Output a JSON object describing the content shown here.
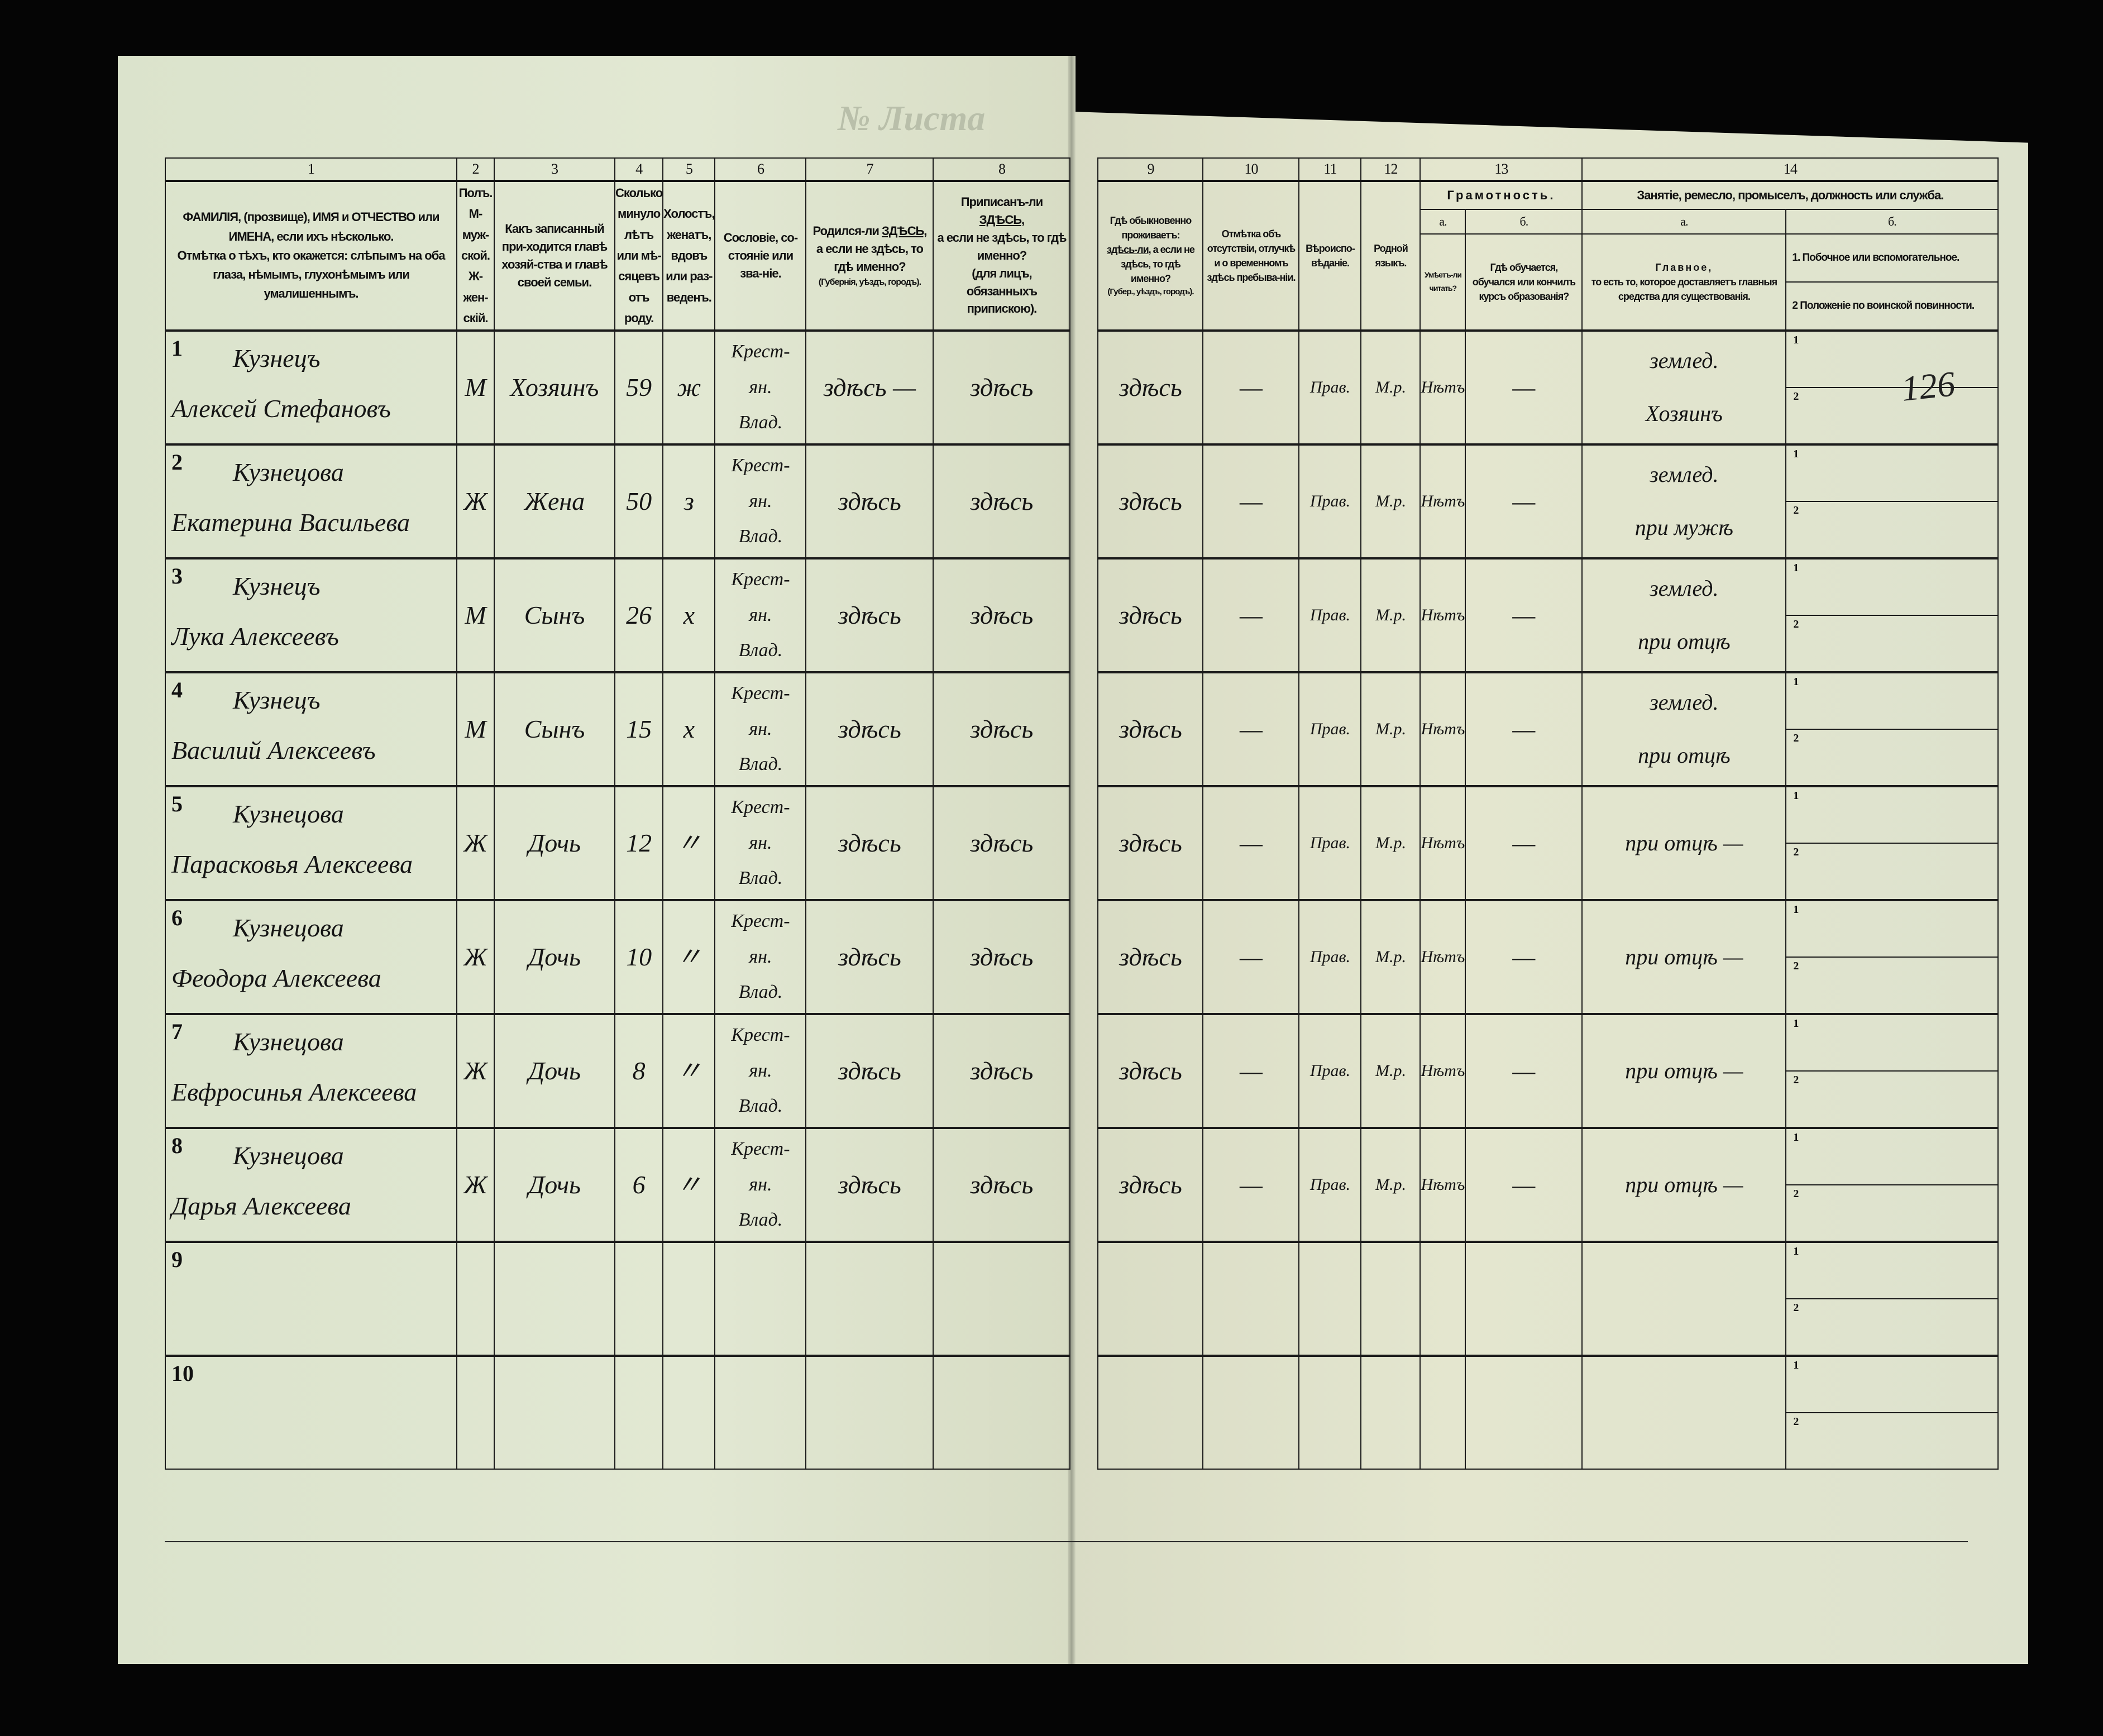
{
  "sheet_header": {
    "sheet_label": "№ Листа"
  },
  "page_number_handwritten": "126",
  "columns": {
    "c1": {
      "num": "1",
      "title_line1": "ФАМИЛІЯ, (прозвище), ИМЯ и ОТЧЕСТВО или",
      "title_line2": "ИМЕНА, если ихъ нѣсколько.",
      "title_line3": "Отмѣтка о тѣхъ, кто окажется: слѣпымъ на оба глаза, нѣмымъ, глухонѣмымъ или умалишеннымъ."
    },
    "c2": {
      "num": "2",
      "title": "Полъ. М-муж-ской. Ж-жен-скій."
    },
    "c3": {
      "num": "3",
      "title": "Какъ записанный при-ходится главѣ хозяй-ства и главѣ своей семьи."
    },
    "c4": {
      "num": "4",
      "title": "Сколько минуло лѣтъ или мѣ-сяцевъ отъ роду."
    },
    "c5": {
      "num": "5",
      "title": "Холостъ, женатъ, вдовъ или раз-веденъ."
    },
    "c6": {
      "num": "6",
      "title": "Сословіе, со-стояніе или зва-ніе."
    },
    "c7": {
      "num": "7",
      "title_a": "Родился-ли",
      "title_here": "ЗДѢСЬ,",
      "title_b": "а если не здѣсь, то гдѣ именно?",
      "title_c": "(Губернія, уѣздъ, городъ)."
    },
    "c8": {
      "num": "8",
      "title_a": "Приписанъ-ли",
      "title_here": "ЗДѢСЬ,",
      "title_b": "а если не здѣсь, то гдѣ именно?",
      "title_c": "(для лицъ, обязанныхъ припискою)."
    },
    "c9": {
      "num": "9",
      "title_a": "Гдѣ обыкновенно проживаетъ:",
      "title_here": "здѣсь-ли,",
      "title_b": "а если не здѣсь, то гдѣ именно?",
      "title_c": "(Губер., уѣздъ, городъ)."
    },
    "c10": {
      "num": "10",
      "title": "Отмѣтка объ отсутствіи, отлучкѣ и о временномъ здѣсь пребыва-ніи."
    },
    "c11": {
      "num": "11",
      "title": "Вѣроиспо-вѣданіе."
    },
    "c12": {
      "num": "12",
      "title": "Родной языкъ."
    },
    "c13": {
      "num": "13",
      "group": "Грамотность.",
      "a_label": "а.",
      "a_title": "Умѣетъ-ли читать?",
      "b_label": "б.",
      "b_title": "Гдѣ обучается, обучался или кончилъ курсъ образованія?"
    },
    "c14": {
      "num": "14",
      "group": "Занятіе, ремесло, промыселъ, должность или служба.",
      "a_label": "а.",
      "a_title_1": "Главное,",
      "a_title_2": "то есть то, которое доставляетъ главныя средства для существованія.",
      "b_label": "б.",
      "b_opt1": "1. Побочное или вспомогательное.",
      "b_opt2": "2 Положеніе по воинской повинности."
    }
  },
  "rows": [
    {
      "n": "1",
      "surname": "Кузнецъ",
      "given": "Алексей Стефановъ",
      "sex": "М",
      "relation": "Хозяинъ",
      "age": "59",
      "marital": "ж",
      "estate": [
        "Крест-",
        "ян.",
        "Влад."
      ],
      "born": "здѣсь —",
      "registered": "здѣсь",
      "resides": "здѣсь",
      "absence": "—",
      "religion": "Прав.",
      "language": "М.р.",
      "literate": "Нѣтъ",
      "education": "—",
      "occupation": [
        "землед.",
        "Хозяинъ"
      ]
    },
    {
      "n": "2",
      "surname": "Кузнецова",
      "given": "Екатерина Васильева",
      "sex": "Ж",
      "relation": "Жена",
      "age": "50",
      "marital": "з",
      "estate": [
        "Крест-",
        "ян.",
        "Влад."
      ],
      "born": "здѣсь",
      "registered": "здѣсь",
      "resides": "здѣсь",
      "absence": "—",
      "religion": "Прав.",
      "language": "М.р.",
      "literate": "Нѣтъ",
      "education": "—",
      "occupation": [
        "землед.",
        "при мужѣ"
      ]
    },
    {
      "n": "3",
      "surname": "Кузнецъ",
      "given": "Лука Алексеевъ",
      "sex": "М",
      "relation": "Сынъ",
      "age": "26",
      "marital": "х",
      "estate": [
        "Крест-",
        "ян.",
        "Влад."
      ],
      "born": "здѣсь",
      "registered": "здѣсь",
      "resides": "здѣсь",
      "absence": "—",
      "religion": "Прав.",
      "language": "М.р.",
      "literate": "Нѣтъ",
      "education": "—",
      "occupation": [
        "землед.",
        "при отцѣ"
      ]
    },
    {
      "n": "4",
      "surname": "Кузнецъ",
      "given": "Василий Алексеевъ",
      "sex": "М",
      "relation": "Сынъ",
      "age": "15",
      "marital": "х",
      "estate": [
        "Крест-",
        "ян.",
        "Влад."
      ],
      "born": "здѣсь",
      "registered": "здѣсь",
      "resides": "здѣсь",
      "absence": "—",
      "religion": "Прав.",
      "language": "М.р.",
      "literate": "Нѣтъ",
      "education": "—",
      "occupation": [
        "землед.",
        "при отцѣ"
      ]
    },
    {
      "n": "5",
      "surname": "Кузнецова",
      "given": "Парасковья Алексеева",
      "sex": "Ж",
      "relation": "Дочь",
      "age": "12",
      "marital": "〃",
      "estate": [
        "Крест-",
        "ян.",
        "Влад."
      ],
      "born": "здѣсь",
      "registered": "здѣсь",
      "resides": "здѣсь",
      "absence": "—",
      "religion": "Прав.",
      "language": "М.р.",
      "literate": "Нѣтъ",
      "education": "—",
      "occupation": [
        "при отцѣ —"
      ]
    },
    {
      "n": "6",
      "surname": "Кузнецова",
      "given": "Феодора Алексеева",
      "sex": "Ж",
      "relation": "Дочь",
      "age": "10",
      "marital": "〃",
      "estate": [
        "Крест-",
        "ян.",
        "Влад."
      ],
      "born": "здѣсь",
      "registered": "здѣсь",
      "resides": "здѣсь",
      "absence": "—",
      "religion": "Прав.",
      "language": "М.р.",
      "literate": "Нѣтъ",
      "education": "—",
      "occupation": [
        "при отцѣ —"
      ]
    },
    {
      "n": "7",
      "surname": "Кузнецова",
      "given": "Евфросинья Алексеева",
      "sex": "Ж",
      "relation": "Дочь",
      "age": "8",
      "marital": "〃",
      "estate": [
        "Крест-",
        "ян.",
        "Влад."
      ],
      "born": "здѣсь",
      "registered": "здѣсь",
      "resides": "здѣсь",
      "absence": "—",
      "religion": "Прав.",
      "language": "М.р.",
      "literate": "Нѣтъ",
      "education": "—",
      "occupation": [
        "при отцѣ —"
      ]
    },
    {
      "n": "8",
      "surname": "Кузнецова",
      "given": "Дарья Алексеева",
      "sex": "Ж",
      "relation": "Дочь",
      "age": "6",
      "marital": "〃",
      "estate": [
        "Крест-",
        "ян.",
        "Влад."
      ],
      "born": "здѣсь",
      "registered": "здѣсь",
      "resides": "здѣсь",
      "absence": "—",
      "religion": "Прав.",
      "language": "М.р.",
      "literate": "Нѣтъ",
      "education": "—",
      "occupation": [
        "при отцѣ —"
      ]
    },
    {
      "n": "9"
    },
    {
      "n": "10"
    }
  ],
  "sub_labels": {
    "one": "1",
    "two": "2"
  },
  "colors": {
    "paper": "#dfe5cf",
    "ink": "#151515",
    "background": "#050505"
  }
}
